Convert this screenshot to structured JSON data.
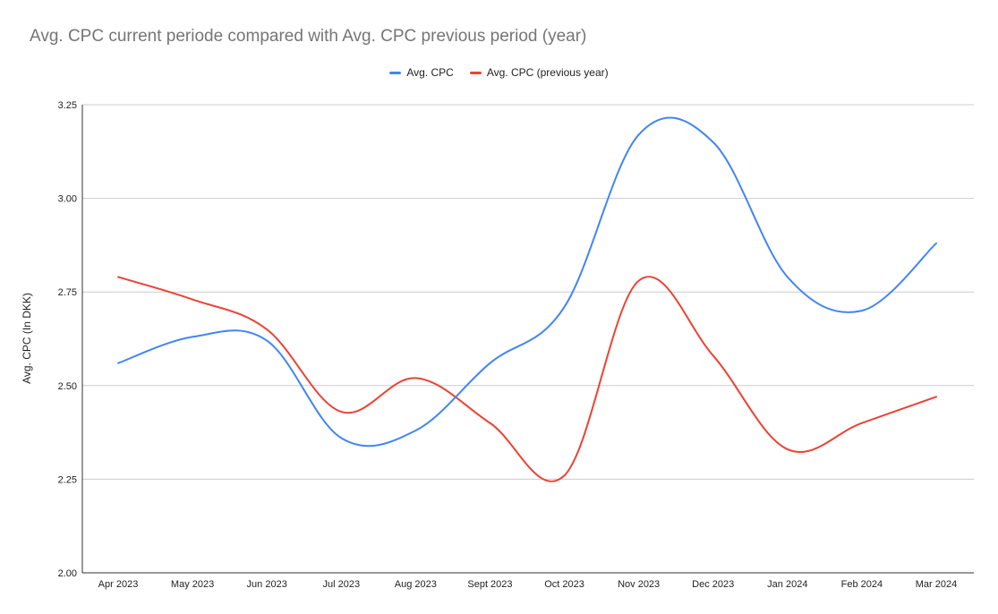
{
  "chart_data": {
    "type": "line",
    "title": "Avg. CPC current periode compared with Avg. CPC previous period (year)",
    "xlabel": "",
    "ylabel": "Avg. CPC (In DKK)",
    "categories": [
      "Apr 2023",
      "May 2023",
      "Jun 2023",
      "Jul 2023",
      "Aug 2023",
      "Sept 2023",
      "Oct 2023",
      "Nov 2023",
      "Dec 2023",
      "Jan 2024",
      "Feb 2024",
      "Mar 2024"
    ],
    "series": [
      {
        "name": "Avg. CPC",
        "color": "#4285f4",
        "values": [
          2.56,
          2.63,
          2.62,
          2.36,
          2.38,
          2.56,
          2.71,
          3.17,
          3.15,
          2.79,
          2.7,
          2.88
        ]
      },
      {
        "name": "Avg. CPC (previous year)",
        "color": "#ea4335",
        "values": [
          2.79,
          2.73,
          2.65,
          2.43,
          2.52,
          2.4,
          2.26,
          2.78,
          2.58,
          2.33,
          2.4,
          2.47
        ]
      }
    ],
    "ylim": [
      2.0,
      3.25
    ],
    "yticks": [
      "2.00",
      "2.25",
      "2.50",
      "2.75",
      "3.00",
      "3.25"
    ],
    "grid": true,
    "legend_position": "top"
  }
}
